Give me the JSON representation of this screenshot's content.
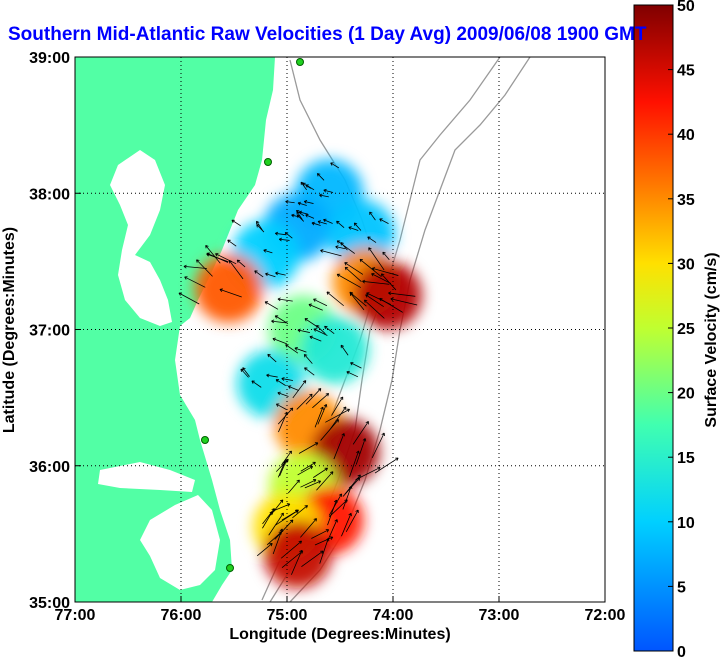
{
  "chart_data": {
    "type": "heatmap",
    "title": "Southern Mid-Atlantic Raw Velocities (1 Day Avg) 2009/06/08 1900 GMT",
    "xlabel": "Longitude (Degrees:Minutes)",
    "ylabel": "Latitude (Degrees:Minutes)",
    "xlim": [
      -77,
      -72
    ],
    "ylim": [
      35,
      39
    ],
    "x_ticks": [
      {
        "value": -77,
        "label": "77:00"
      },
      {
        "value": -76,
        "label": "76:00"
      },
      {
        "value": -75,
        "label": "75:00"
      },
      {
        "value": -74,
        "label": "74:00"
      },
      {
        "value": -73,
        "label": "73:00"
      },
      {
        "value": -72,
        "label": "72:00"
      }
    ],
    "y_ticks": [
      {
        "value": 35,
        "label": "35:00"
      },
      {
        "value": 36,
        "label": "36:00"
      },
      {
        "value": 37,
        "label": "37:00"
      },
      {
        "value": 38,
        "label": "38:00"
      },
      {
        "value": 39,
        "label": "39:00"
      }
    ],
    "grid": true,
    "colorbar": {
      "label": "Surface Velocity (cm/s)",
      "range": [
        0,
        50
      ],
      "ticks": [
        {
          "value": 0,
          "label": "0"
        },
        {
          "value": 5,
          "label": "5"
        },
        {
          "value": 10,
          "label": "10"
        },
        {
          "value": 15,
          "label": "15"
        },
        {
          "value": 20,
          "label": "20"
        },
        {
          "value": 25,
          "label": "25"
        },
        {
          "value": 30,
          "label": "30"
        },
        {
          "value": 35,
          "label": "35"
        },
        {
          "value": 40,
          "label": "40"
        },
        {
          "value": 45,
          "label": "45"
        },
        {
          "value": 50,
          "label": "50"
        }
      ]
    },
    "velocity_regions": [
      {
        "lon": -74.6,
        "lat": 38.0,
        "speed": 8
      },
      {
        "lon": -74.9,
        "lat": 37.75,
        "speed": 7
      },
      {
        "lon": -74.3,
        "lat": 37.7,
        "speed": 9
      },
      {
        "lon": -75.2,
        "lat": 37.55,
        "speed": 10
      },
      {
        "lon": -75.55,
        "lat": 37.3,
        "speed": 38
      },
      {
        "lon": -74.25,
        "lat": 37.35,
        "speed": 35
      },
      {
        "lon": -74.05,
        "lat": 37.25,
        "speed": 47
      },
      {
        "lon": -74.85,
        "lat": 37.0,
        "speed": 20
      },
      {
        "lon": -74.55,
        "lat": 36.85,
        "speed": 14
      },
      {
        "lon": -75.15,
        "lat": 36.6,
        "speed": 12
      },
      {
        "lon": -74.8,
        "lat": 36.3,
        "speed": 35
      },
      {
        "lon": -74.45,
        "lat": 36.1,
        "speed": 48
      },
      {
        "lon": -74.85,
        "lat": 35.85,
        "speed": 25
      },
      {
        "lon": -74.6,
        "lat": 35.6,
        "speed": 42
      },
      {
        "lon": -75.0,
        "lat": 35.55,
        "speed": 30
      },
      {
        "lon": -74.9,
        "lat": 35.35,
        "speed": 46
      }
    ]
  }
}
